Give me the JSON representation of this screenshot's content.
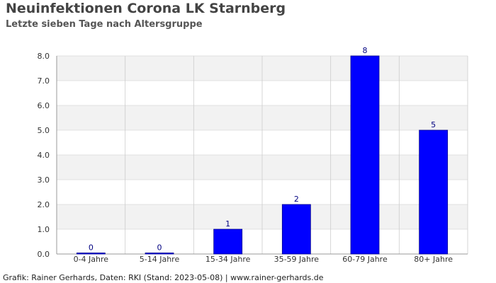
{
  "chart_data": {
    "type": "bar",
    "title": "Neuinfektionen Corona LK Starnberg",
    "subtitle": "Letzte sieben Tage nach Altersgruppe",
    "xlabel": "",
    "ylabel": "",
    "categories": [
      "0-4 Jahre",
      "5-14 Jahre",
      "15-34 Jahre",
      "35-59 Jahre",
      "60-79 Jahre",
      "80+ Jahre"
    ],
    "values": [
      0,
      0,
      1,
      2,
      8,
      5
    ],
    "data_labels": [
      "0",
      "0",
      "1",
      "2",
      "8",
      "5"
    ],
    "ylim": [
      0,
      8
    ],
    "yticks": [
      "0.0",
      "1.0",
      "2.0",
      "3.0",
      "4.0",
      "5.0",
      "6.0",
      "7.0",
      "8.0"
    ],
    "grid": true,
    "legend": "none",
    "colors": {
      "bar": "#0000ff",
      "bar_edge": "#00008b",
      "data_label": "#000080",
      "band": "#f2f2f2",
      "grid": "#cccccc",
      "axis_text": "#333333"
    }
  },
  "footer": "Grafik: Rainer Gerhards, Daten: RKI (Stand: 2023-05-08) | www.rainer-gerhards.de"
}
